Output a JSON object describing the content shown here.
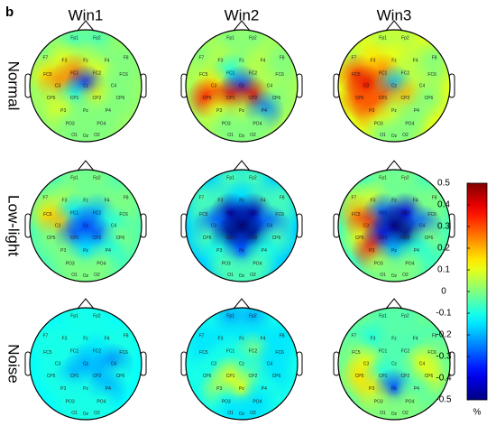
{
  "panel_label": "b",
  "columns": [
    "Win1",
    "Win2",
    "Win3"
  ],
  "rows": [
    "Normal",
    "Low-light",
    "Noise"
  ],
  "electrodes": [
    "Fp1",
    "Fp2",
    "F7",
    "F3",
    "Fz",
    "F4",
    "F8",
    "FC5",
    "FC1",
    "FC2",
    "FC6",
    "C3",
    "Cz",
    "C4",
    "CP5",
    "CP1",
    "CP2",
    "CP6",
    "P3",
    "Pz",
    "P4",
    "PO3",
    "PO4",
    "O1",
    "Oz",
    "O2"
  ],
  "maps": [
    [
      [
        -0.05,
        -0.05,
        0,
        0.1,
        0.05,
        0,
        0,
        0.15,
        0.25,
        0.1,
        0,
        0.25,
        -0.35,
        0,
        0.05,
        -0.1,
        0.1,
        0,
        0.1,
        0,
        0,
        0,
        0,
        0,
        0,
        0
      ],
      [
        0,
        0,
        0,
        0.05,
        0,
        0.05,
        0,
        0.05,
        -0.1,
        0.05,
        0,
        0.15,
        -0.3,
        0.05,
        0.35,
        0.4,
        0.4,
        0,
        0.1,
        0.05,
        -0.25,
        0,
        0,
        0,
        0,
        0
      ],
      [
        0.05,
        0.05,
        0.05,
        0.15,
        0.1,
        0.05,
        0,
        0.3,
        0.25,
        0.05,
        0,
        0.4,
        -0.2,
        0.05,
        0.3,
        0.3,
        0.2,
        0,
        0.3,
        0.05,
        0,
        0.1,
        0,
        0,
        0,
        0
      ]
    ],
    [
      [
        0,
        0,
        0,
        0.05,
        0,
        0,
        0,
        0.15,
        -0.15,
        -0.2,
        0,
        0.2,
        -0.3,
        -0.1,
        0,
        -0.3,
        -0.3,
        0,
        0,
        -0.15,
        -0.1,
        0,
        0,
        0,
        0,
        0
      ],
      [
        -0.05,
        -0.05,
        -0.05,
        -0.05,
        -0.15,
        -0.05,
        -0.05,
        -0.05,
        -0.45,
        -0.45,
        -0.05,
        -0.3,
        -0.5,
        -0.3,
        -0.05,
        -0.5,
        -0.5,
        -0.05,
        -0.1,
        -0.3,
        -0.1,
        -0.05,
        -0.05,
        -0.05,
        -0.05,
        -0.05
      ],
      [
        0,
        0,
        0.05,
        0.1,
        0,
        0,
        0,
        0.2,
        -0.3,
        -0.4,
        0,
        0.35,
        -0.5,
        -0.3,
        0.1,
        -0.4,
        -0.5,
        0,
        0.35,
        -0.2,
        -0.1,
        0.05,
        0,
        0,
        0,
        0
      ]
    ],
    [
      [
        -0.1,
        -0.1,
        -0.1,
        -0.1,
        -0.1,
        -0.1,
        -0.1,
        -0.1,
        -0.1,
        -0.15,
        -0.1,
        -0.1,
        -0.2,
        -0.25,
        -0.1,
        -0.2,
        -0.2,
        -0.1,
        -0.1,
        -0.1,
        -0.2,
        -0.1,
        -0.1,
        -0.1,
        -0.1,
        -0.1
      ],
      [
        -0.2,
        -0.2,
        -0.15,
        -0.15,
        -0.15,
        -0.15,
        -0.15,
        -0.15,
        -0.1,
        0,
        -0.15,
        -0.1,
        -0.1,
        -0.15,
        -0.1,
        0.1,
        -0.05,
        -0.15,
        0.05,
        0.1,
        -0.1,
        -0.1,
        -0.15,
        -0.15,
        -0.15,
        -0.15
      ],
      [
        -0.05,
        -0.05,
        -0.05,
        -0.1,
        -0.05,
        -0.05,
        -0.05,
        0,
        -0.05,
        -0.05,
        0,
        0.1,
        -0.05,
        0.1,
        0.15,
        -0.1,
        -0.05,
        0.1,
        0.15,
        -0.3,
        -0.05,
        0.05,
        0,
        0,
        0,
        0
      ]
    ]
  ],
  "colorbar": {
    "lim": [
      -0.5,
      0.5
    ],
    "ticks": [
      0.5,
      0.4,
      0.3,
      0.2,
      0.1,
      0,
      -0.1,
      -0.2,
      -0.3,
      -0.4,
      -0.5
    ],
    "unit": "%"
  }
}
